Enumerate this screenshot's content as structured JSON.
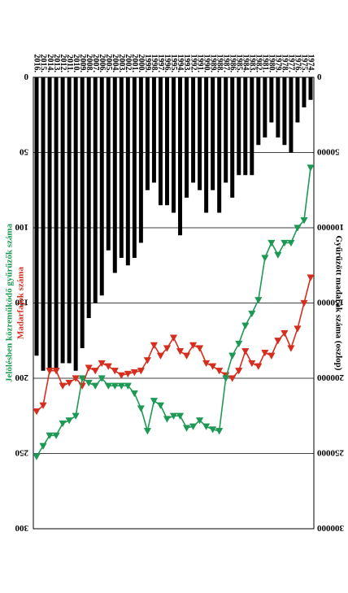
{
  "chart_data": {
    "type": "bar",
    "orientation": "rotated-180",
    "categories": [
      "1974.",
      "1975.",
      "1976.",
      "1977.",
      "1978.",
      "1979.",
      "1980.",
      "1981.",
      "1982.",
      "1983.",
      "1984.",
      "1985.",
      "1986.",
      "1987.",
      "1988.",
      "1989.",
      "1990.",
      "1991.",
      "1992.",
      "1993.",
      "1994.",
      "1995.",
      "1996.",
      "1997.",
      "1998.",
      "1999.",
      "2000.",
      "2001.",
      "2002.",
      "2003.",
      "2004.",
      "2005.",
      "2006.",
      "2007.",
      "2008.",
      "2009.",
      "2010.",
      "2011.",
      "2012.",
      "2013.",
      "2014.",
      "2015.",
      "2016."
    ],
    "left_axis": {
      "label": "Gyűrűzött madarak száma (oszlop)",
      "ylim": [
        0,
        300000
      ],
      "ticks": [
        "0",
        "50000",
        "100000",
        "150000",
        "200000",
        "250000",
        "300000"
      ]
    },
    "right_axis": {
      "labels": [
        "Madarfajok száma",
        "Jelölésben közreműködő gyűrűzők száma"
      ],
      "ylim": [
        0,
        300
      ],
      "ticks": [
        "0",
        "50",
        "100",
        "150",
        "200",
        "250",
        "300"
      ]
    },
    "series": [
      {
        "name": "Gyűrűzött madarak száma",
        "type": "bar",
        "axis": "left",
        "color": "#000000",
        "values": [
          15000,
          20000,
          30000,
          50000,
          45000,
          40000,
          30000,
          40000,
          45000,
          65000,
          65000,
          65000,
          80000,
          70000,
          90000,
          75000,
          90000,
          75000,
          70000,
          80000,
          105000,
          90000,
          85000,
          85000,
          70000,
          75000,
          110000,
          120000,
          125000,
          120000,
          130000,
          115000,
          145000,
          150000,
          160000,
          180000,
          195000,
          190000,
          190000,
          195000,
          195000,
          195000,
          185000
        ]
      },
      {
        "name": "Madarfajok száma",
        "type": "line",
        "axis": "right",
        "color": "#d62e1e",
        "marker": "triangle",
        "values": [
          133,
          150,
          167,
          180,
          170,
          175,
          185,
          183,
          192,
          190,
          182,
          195,
          200,
          198,
          195,
          192,
          190,
          180,
          178,
          185,
          182,
          173,
          180,
          185,
          178,
          188,
          195,
          196,
          197,
          198,
          195,
          192,
          190,
          195,
          193,
          205,
          200,
          203,
          205,
          195,
          195,
          218,
          222
        ]
      },
      {
        "name": "Jelölésben közreműködő gyűrűzők száma",
        "type": "line",
        "axis": "right",
        "color": "#1e9955",
        "marker": "triangle",
        "values": [
          60,
          95,
          100,
          110,
          110,
          118,
          110,
          120,
          148,
          157,
          165,
          177,
          185,
          200,
          235,
          234,
          232,
          228,
          232,
          233,
          225,
          225,
          227,
          218,
          215,
          235,
          220,
          210,
          205,
          205,
          205,
          205,
          200,
          205,
          203,
          200,
          225,
          228,
          230,
          238,
          238,
          245,
          252
        ]
      }
    ]
  }
}
